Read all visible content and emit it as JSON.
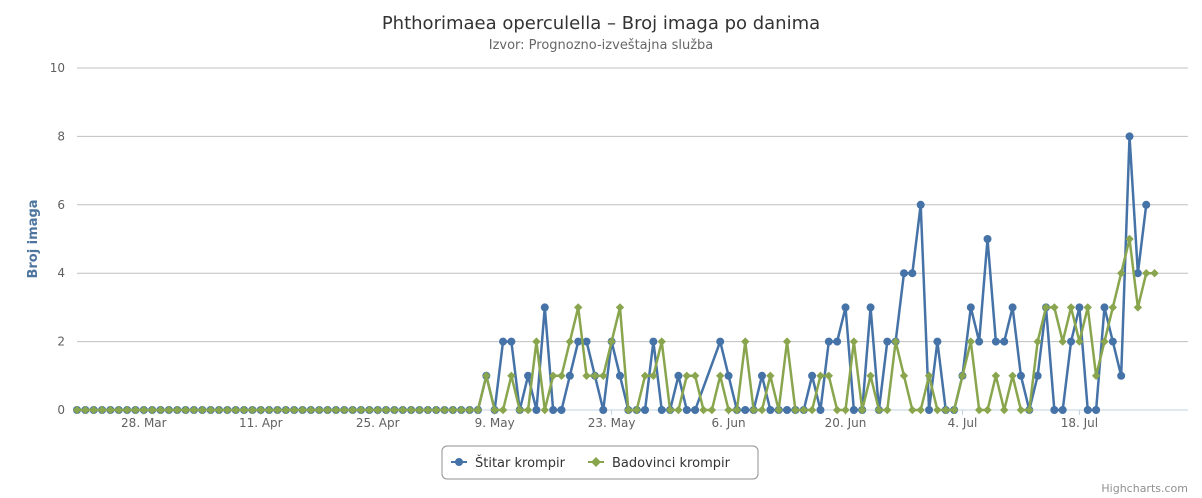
{
  "chart_data": {
    "type": "line",
    "title": "Phthorimaea operculella – Broj imaga po danima",
    "subtitle": "Izvor: Prognozno-izveštajna služba",
    "ylabel": "Broj imaga",
    "ylim": [
      0,
      10
    ],
    "yticks": [
      "0",
      "2",
      "4",
      "6",
      "8",
      "10"
    ],
    "x_range": [
      "2019-03-20",
      "2019-07-31"
    ],
    "x_ticks": [
      {
        "date": "2019-03-28",
        "label": "28. Mar"
      },
      {
        "date": "2019-04-11",
        "label": "11. Apr"
      },
      {
        "date": "2019-04-25",
        "label": "25. Apr"
      },
      {
        "date": "2019-05-09",
        "label": "9. May"
      },
      {
        "date": "2019-05-23",
        "label": "23. May"
      },
      {
        "date": "2019-06-06",
        "label": "6. Jun"
      },
      {
        "date": "2019-06-20",
        "label": "20. Jun"
      },
      {
        "date": "2019-07-04",
        "label": "4. Jul"
      },
      {
        "date": "2019-07-18",
        "label": "18. Jul"
      }
    ],
    "grid": true,
    "legend_position": "bottom-center",
    "series": [
      {
        "name": "Štitar krompir",
        "color": "#4572a7",
        "marker": "circle",
        "start_date": "2019-03-20",
        "values": [
          0,
          0,
          0,
          0,
          0,
          0,
          0,
          0,
          0,
          0,
          0,
          0,
          0,
          0,
          0,
          0,
          0,
          0,
          0,
          0,
          0,
          0,
          0,
          0,
          0,
          0,
          0,
          0,
          0,
          0,
          0,
          0,
          0,
          0,
          0,
          0,
          0,
          0,
          0,
          0,
          0,
          0,
          0,
          0,
          0,
          0,
          0,
          0,
          0,
          1,
          0,
          2,
          2,
          0,
          1,
          0,
          3,
          0,
          0,
          1,
          2,
          2,
          1,
          0,
          2,
          1,
          0,
          0,
          0,
          2,
          0,
          0,
          1,
          0,
          0,
          null,
          null,
          2,
          1,
          0,
          0,
          0,
          1,
          0,
          0,
          0,
          0,
          0,
          1,
          0,
          2,
          2,
          3,
          0,
          0,
          3,
          0,
          2,
          2,
          4,
          4,
          6,
          0,
          2,
          0,
          0,
          1,
          3,
          2,
          5,
          2,
          2,
          3,
          1,
          0,
          1,
          3,
          0,
          0,
          2,
          3,
          0,
          0,
          3,
          2,
          1,
          8,
          4,
          6
        ]
      },
      {
        "name": "Badovinci krompir",
        "color": "#89a54e",
        "marker": "diamond",
        "start_date": "2019-03-20",
        "values": [
          0,
          0,
          0,
          0,
          0,
          0,
          0,
          0,
          0,
          0,
          0,
          0,
          0,
          0,
          0,
          0,
          0,
          0,
          0,
          0,
          0,
          0,
          0,
          0,
          0,
          0,
          0,
          0,
          0,
          0,
          0,
          0,
          0,
          0,
          0,
          0,
          0,
          0,
          0,
          0,
          0,
          0,
          0,
          0,
          0,
          0,
          0,
          0,
          0,
          1,
          0,
          0,
          1,
          0,
          0,
          2,
          0,
          1,
          1,
          2,
          3,
          1,
          1,
          1,
          2,
          3,
          0,
          0,
          1,
          1,
          2,
          0,
          0,
          1,
          1,
          0,
          0,
          1,
          0,
          0,
          2,
          0,
          0,
          1,
          0,
          2,
          0,
          0,
          0,
          1,
          1,
          0,
          0,
          2,
          0,
          1,
          0,
          0,
          2,
          1,
          0,
          0,
          1,
          0,
          0,
          0,
          1,
          2,
          0,
          0,
          1,
          0,
          1,
          0,
          0,
          2,
          3,
          3,
          2,
          3,
          2,
          3,
          1,
          2,
          3,
          4,
          5,
          3,
          4,
          4
        ]
      }
    ]
  },
  "credits": "Highcharts.com"
}
